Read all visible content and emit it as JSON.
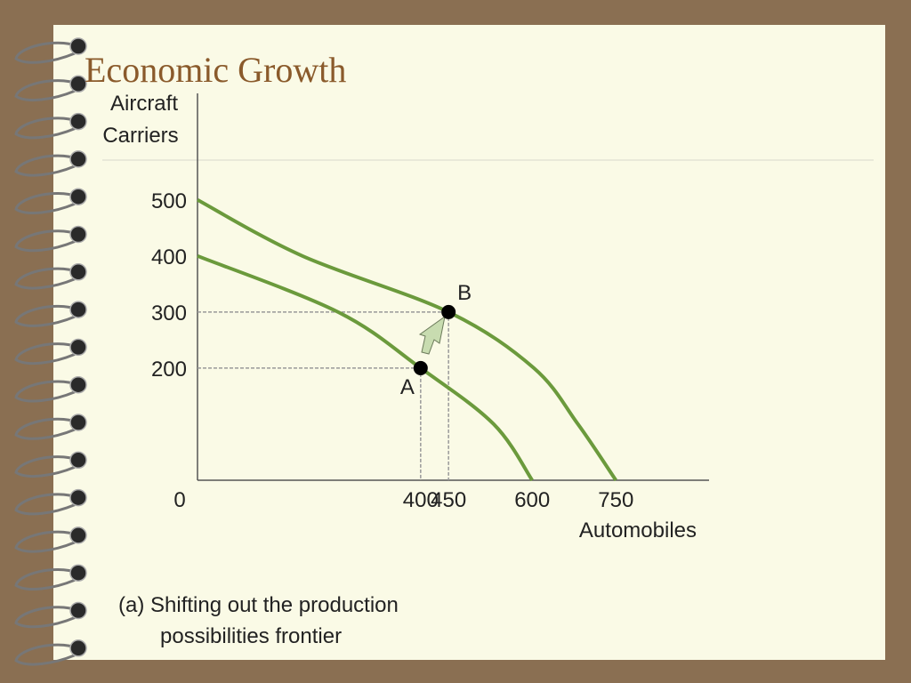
{
  "chart_data": {
    "type": "line",
    "title": "Economic Growth",
    "ylabel": [
      "Aircraft",
      "Carriers"
    ],
    "xlabel": "Automobiles",
    "caption": [
      "(a) Shifting out the production",
      "possibilities frontier"
    ],
    "xlim": [
      0,
      917
    ],
    "ylim": [
      0,
      690
    ],
    "xticks": [
      0,
      400,
      450,
      600,
      750
    ],
    "yticks": [
      200,
      300,
      400,
      500
    ],
    "highlight_color": "#e0207a",
    "series": [
      {
        "color": "#6b9a3c",
        "x": [
          0,
          252,
          400,
          531,
          600
        ],
        "values": [
          400,
          300,
          200,
          100,
          0
        ]
      },
      {
        "color": "#6b9a3c",
        "x": [
          0,
          188,
          450,
          603,
          682,
          750
        ],
        "values": [
          500,
          400,
          300,
          200,
          100,
          0
        ]
      }
    ],
    "points": [
      {
        "label": "A",
        "x": 400,
        "y": 200
      },
      {
        "label": "B",
        "x": 450,
        "y": 300
      }
    ]
  }
}
